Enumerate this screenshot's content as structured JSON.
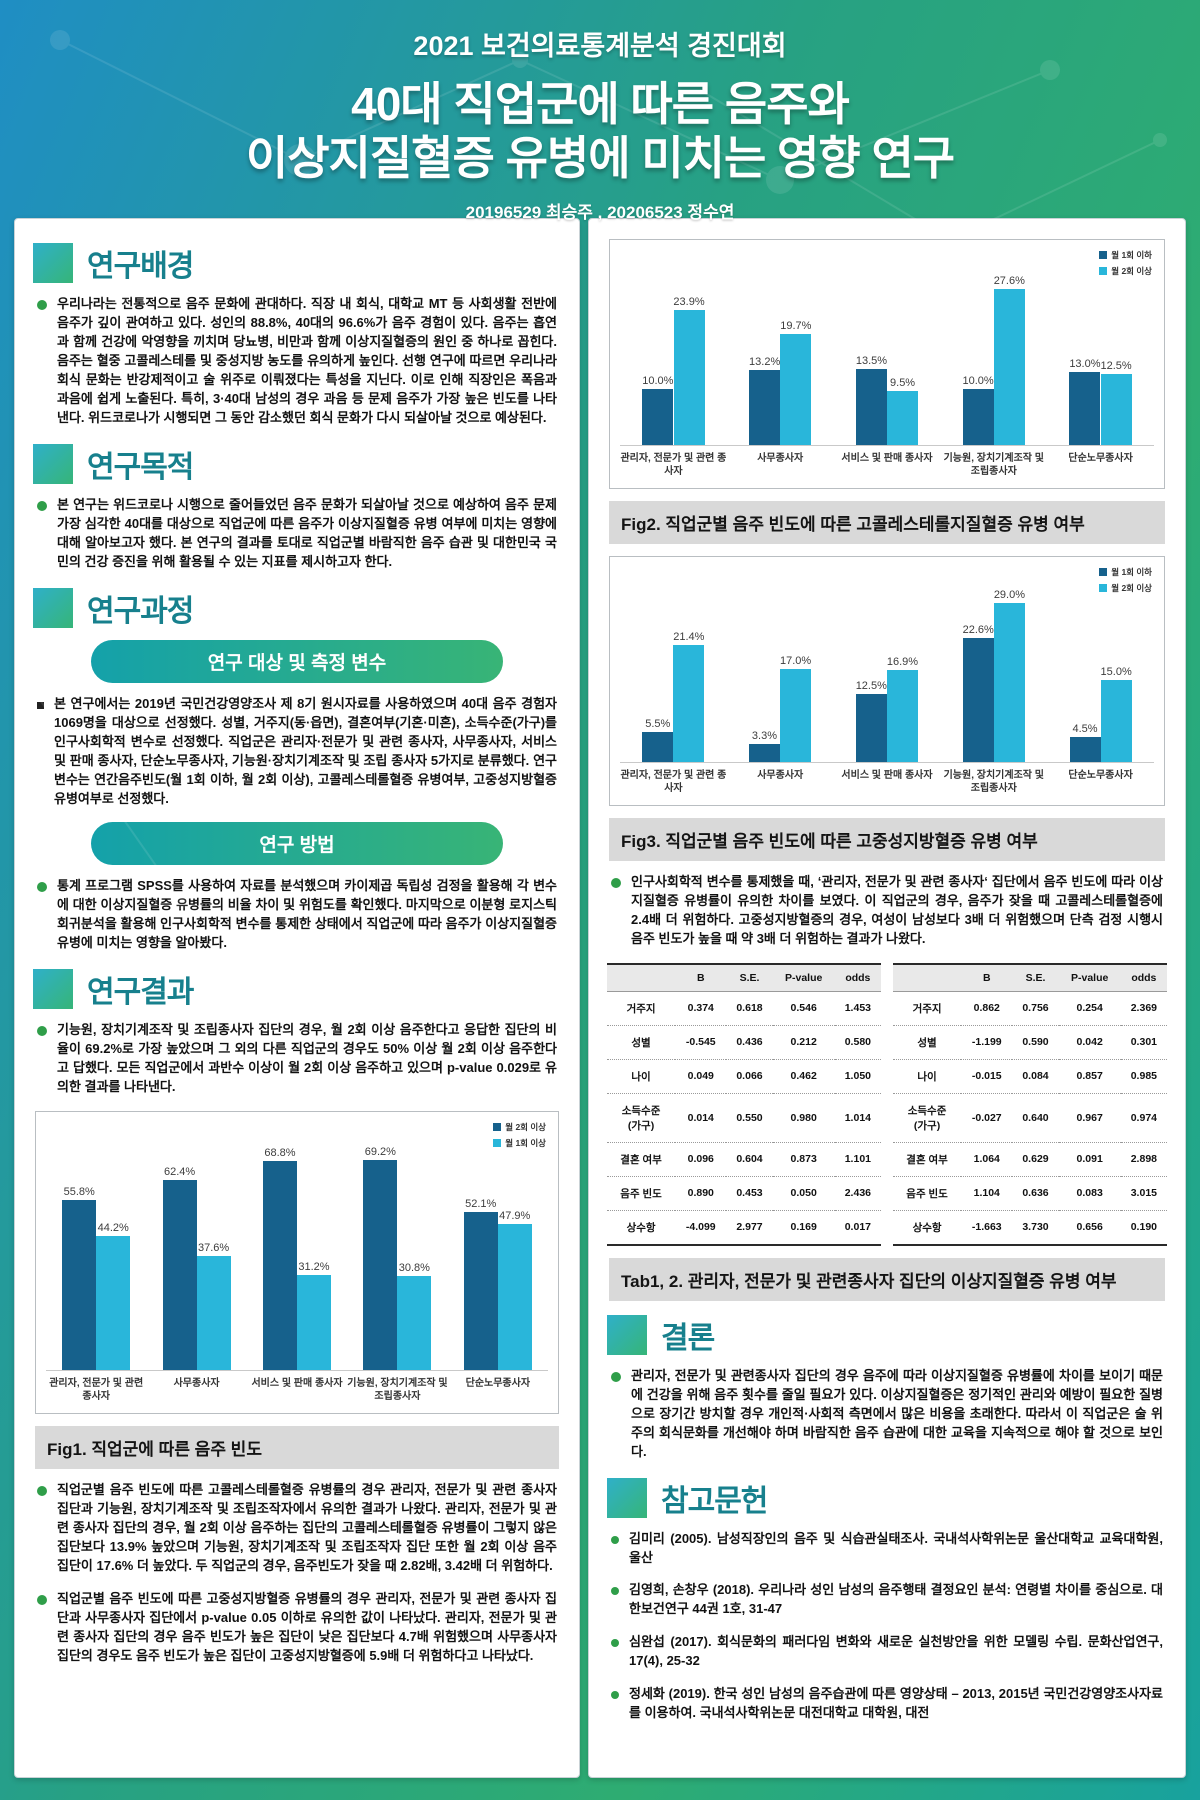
{
  "header": {
    "competition": "2021 보건의료통계분석 경진대회",
    "title_line1": "40대 직업군에 따른 음주와",
    "title_line2": "이상지질혈증 유병에 미치는 영향 연구",
    "authors": "20196529 최승주 , 20206523 정수연"
  },
  "left": {
    "background_title": "연구배경",
    "background_text": "우리나라는 전통적으로 음주 문화에 관대하다. 직장 내 회식, 대학교 MT 등 사회생활 전반에 음주가 깊이 관여하고 있다. 성인의 88.8%, 40대의 96.6%가 음주 경험이 있다. 음주는 흡연과 함께 건강에 악영향을 끼치며 당뇨병, 비만과 함께 이상지질혈증의 원인 중 하나로 꼽힌다. 음주는 혈중 고콜레스테롤 및 중성지방 농도를 유의하게 높인다. 선행 연구에 따르면 우리나라 회식 문화는 반강제적이고 술 위주로 이뤄졌다는 특성을 지닌다. 이로 인해 직장인은 폭음과 과음에 쉽게 노출된다. 특히, 3·40대 남성의 경우 과음 등 문제 음주가 가장 높은 빈도를 나타낸다. 위드코로나가 시행되면 그 동안 감소했던 회식 문화가 다시 되살아날 것으로 예상된다.",
    "purpose_title": "연구목적",
    "purpose_text": "본 연구는 위드코로나 시행으로 줄어들었던 음주 문화가 되살아날 것으로 예상하여 음주 문제 가장 심각한 40대를 대상으로 직업군에 따른 음주가 이상지질혈증 유병 여부에 미치는 영향에 대해 알아보고자 했다. 본 연구의 결과를 토대로 직업군별 바람직한 음주 습관 및 대한민국 국민의 건강 증진을 위해 활용될 수 있는 지표를 제시하고자 한다.",
    "process_title": "연구과정",
    "process_sub1": "연구 대상 및 측정 변수",
    "process_sub1_text": "본 연구에서는 2019년 국민건강영양조사 제 8기 원시자료를 사용하였으며 40대 음주 경험자 1069명을 대상으로 선정했다. 성별, 거주지(동·읍면), 결혼여부(기혼·미혼), 소득수준(가구)를 인구사회학적 변수로 선정했다. 직업군은 관리자·전문가 및 관련 종사자, 사무종사자, 서비스 및 판매 종사자, 단순노무종사자, 기능원·장치기계조작 및 조립 종사자 5가지로 분류했다. 연구변수는 연간음주빈도(월 1회 이하, 월 2회 이상), 고콜레스테롤혈증 유병여부, 고중성지방혈증 유병여부로 선정했다.",
    "process_sub2": "연구 방법",
    "process_sub2_text": "통계 프로그램 SPSS를 사용하여 자료를 분석했으며 카이제곱 독립성 검정을 활용해 각 변수에 대한 이상지질혈증 유병률의 비율 차이 및 위험도를 확인했다. 마지막으로 이분형 로지스틱 회귀분석을 활용해 인구사회학적 변수를 통제한 상태에서 직업군에 따라 음주가 이상지질혈증 유병에 미치는 영향을 알아봤다.",
    "results_title": "연구결과",
    "results_text": "기능원, 장치기계조작 및 조립종사자 집단의 경우, 월 2회 이상 음주한다고 응답한 집단의 비율이 69.2%로 가장 높았으며 그 외의 다른 직업군의 경우도 50% 이상 월 2회 이상 음주한다고 답했다. 모든 직업군에서 과반수 이상이 월 2회 이상 음주하고 있으며 p-value 0.029로 유의한 결과를 나타낸다.",
    "fig1_caption": "Fig1. 직업군에 따른 음주 빈도",
    "results_bullet2": "직업군별 음주 빈도에 따른 고콜레스테롤혈증 유병률의 경우 관리자, 전문가 및 관련 종사자 집단과 기능원, 장치기계조작 및 조립조작자에서 유의한 결과가 나왔다. 관리자, 전문가 및 관련 종사자 집단의 경우, 월 2회 이상 음주하는 집단의 고콜레스테롤혈증 유병률이 그렇지 않은 집단보다 13.9% 높았으며 기능원, 장치기계조작 및 조립조작자 집단 또한 월 2회 이상 음주 집단이 17.6% 더 높았다.  두 직업군의 경우, 음주빈도가 잦을 때 2.82배, 3.42배 더 위험하다.",
    "results_bullet3": "직업군별 음주 빈도에 따른 고중성지방혈증 유병률의 경우 관리자, 전문가 및 관련 종사자 집단과 사무종사자 집단에서 p-value 0.05 이하로 유의한 값이 나타났다. 관리자, 전문가 및 관련 종사자 집단의 경우 음주 빈도가 높은 집단이 낮은 집단보다 4.7배 위험했으며 사무종사자 집단의 경우도 음주 빈도가 높은 집단이 고중성지방혈증에 5.9배 더 위험하다고 나타났다."
  },
  "right": {
    "fig2_caption": "Fig2. 직업군별 음주 빈도에 따른 고콜레스테롤지질혈증 유병 여부",
    "fig3_caption": "Fig3. 직업군별 음주 빈도에 따른 고중성지방혈증 유병 여부",
    "analysis_text": "인구사회학적 변수를 통제했을 때, ‘관리자, 전문가 및 관련 종사자‘ 집단에서 음주 빈도에 따라 이상지질혈증 유병률이 유의한 차이를 보였다. 이 직업군의 경우, 음주가 잦을 때 고콜레스테롤혈증에 2.4배 더 위험하다. 고중성지방혈증의 경우, 여성이 남성보다 3배 더 위험했으며 단측 검정 시행시 음주 빈도가 높을 때 약 3배 더 위험하는 결과가 나왔다.",
    "tab_caption": "Tab1, 2. 관리자, 전문가 및 관련종사자 집단의 이상지질혈증 유병 여부",
    "conclusion_title": "결론",
    "conclusion_text": "관리자, 전문가 및 관련종사자 집단의 경우 음주에 따라 이상지질혈증 유병률에 차이를 보이기 때문에 건강을 위해 음주 횟수를 줄일 필요가 있다. 이상지질혈증은 정기적인 관리와 예방이 필요한 질병으로 장기간 방치할 경우 개인적·사회적 측면에서 많은 비용을 초래한다. 따라서 이 직업군은 술 위주의 회식문화를 개선해야 하며 바람직한 음주 습관에 대한 교육을 지속적으로 해야 할 것으로 보인다.",
    "references_title": "참고문헌",
    "references": [
      "김미리 (2005). 남성직장인의 음주 및 식습관실태조사. 국내석사학위논문 울산대학교 교육대학원, 울산",
      "김영희, 손창우 (2018). 우리나라 성인 남성의 음주행태 결정요인 분석: 연령별 차이를 중심으로. 대한보건연구 44권 1호, 31-47",
      "심완섭 (2017). 회식문화의 패러다임 변화와 새로운 실천방안을 위한 모델링 수립. 문화산업연구, 17(4), 25-32",
      "정세화 (2019). 한국 성인 남성의 음주습관에 따른 영양상태 – 2013, 2015년 국민건강영양조사자료를 이용하여. 국내석사학위논문 대전대학교 대학원, 대전"
    ]
  },
  "tables": {
    "columns": [
      "B",
      "S.E.",
      "P-value",
      "odds"
    ],
    "row_labels": [
      "거주지",
      "성별",
      "나이",
      "소득수준\n(가구)",
      "결혼 여부",
      "음주 빈도",
      "상수항"
    ],
    "left_rows": [
      [
        "0.374",
        "0.618",
        "0.546",
        "1.453"
      ],
      [
        "-0.545",
        "0.436",
        "0.212",
        "0.580"
      ],
      [
        "0.049",
        "0.066",
        "0.462",
        "1.050"
      ],
      [
        "0.014",
        "0.550",
        "0.980",
        "1.014"
      ],
      [
        "0.096",
        "0.604",
        "0.873",
        "1.101"
      ],
      [
        "0.890",
        "0.453",
        "0.050",
        "2.436"
      ],
      [
        "-4.099",
        "2.977",
        "0.169",
        "0.017"
      ]
    ],
    "right_rows": [
      [
        "0.862",
        "0.756",
        "0.254",
        "2.369"
      ],
      [
        "-1.199",
        "0.590",
        "0.042",
        "0.301"
      ],
      [
        "-0.015",
        "0.084",
        "0.857",
        "0.985"
      ],
      [
        "-0.027",
        "0.640",
        "0.967",
        "0.974"
      ],
      [
        "1.064",
        "0.629",
        "0.091",
        "2.898"
      ],
      [
        "1.104",
        "0.636",
        "0.083",
        "3.015"
      ],
      [
        "-1.663",
        "3.730",
        "0.656",
        "0.190"
      ]
    ]
  },
  "colors": {
    "dark_bar": "#16618c",
    "light_bar": "#29b6da",
    "section_title": "#17808d",
    "bullet_green": "#2f9e49"
  },
  "chart_data": [
    {
      "id": "fig1",
      "type": "bar",
      "title": "Fig1. 직업군에 따른 음주 빈도",
      "categories": [
        "관리자, 전문가 및 관련 종사자",
        "사무종사자",
        "서비스 및 판매 종사자",
        "기능원, 장치기계조작 및 조립종사자",
        "단순노무종사자"
      ],
      "series": [
        {
          "name": "월 2회 이상",
          "color": "#16618c",
          "values": [
            55.8,
            62.4,
            68.8,
            69.2,
            52.1
          ]
        },
        {
          "name": "월 1회 이상",
          "color": "#29b6da",
          "values": [
            44.2,
            37.6,
            31.2,
            30.8,
            47.9
          ]
        }
      ],
      "ylim": [
        0,
        75
      ],
      "value_suffix": "%",
      "legend_position": "top-right",
      "grid": false
    },
    {
      "id": "fig2",
      "type": "bar",
      "title": "Fig2. 직업군별 음주 빈도에 따른 고콜레스테롤지질혈증 유병 여부",
      "categories": [
        "관리자, 전문가 및 관련 종사자",
        "사무종사자",
        "서비스 및 판매 종사자",
        "기능원, 장치기계조작 및 조립종사자",
        "단순노무종사자"
      ],
      "series": [
        {
          "name": "월 1회 이하",
          "color": "#16618c",
          "values": [
            10.0,
            13.2,
            13.5,
            10.0,
            13.0
          ]
        },
        {
          "name": "월 2회 이상",
          "color": "#29b6da",
          "values": [
            23.9,
            19.7,
            9.5,
            27.6,
            12.5
          ]
        }
      ],
      "ylim": [
        0,
        31
      ],
      "value_suffix": "%",
      "legend_position": "top-right",
      "grid": false
    },
    {
      "id": "fig3",
      "type": "bar",
      "title": "Fig3. 직업군별 음주 빈도에 따른 고중성지방혈증 유병 여부",
      "categories": [
        "관리자, 전문가 및 관련 종사자",
        "사무종사자",
        "서비스 및 판매 종사자",
        "기능원, 장치기계조작 및 조립종사자",
        "단순노무종사자"
      ],
      "series": [
        {
          "name": "월 1회 이하",
          "color": "#16618c",
          "values": [
            5.5,
            3.3,
            12.5,
            22.6,
            4.5
          ]
        },
        {
          "name": "월 2회 이상",
          "color": "#29b6da",
          "values": [
            21.4,
            17.0,
            16.9,
            29.0,
            15.0
          ]
        }
      ],
      "ylim": [
        0,
        32
      ],
      "value_suffix": "%",
      "legend_position": "top-right",
      "grid": false
    }
  ]
}
